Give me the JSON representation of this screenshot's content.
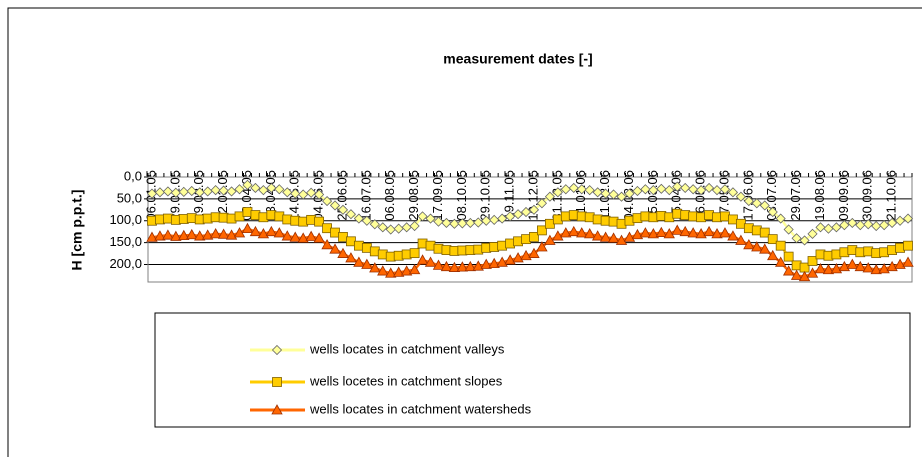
{
  "chart_data": {
    "type": "line",
    "title": "measurement dates [-]",
    "y_label": "H [cm p.p.t.]",
    "categories": [
      "06.01.05",
      null,
      null,
      "29.01.05",
      null,
      null,
      "19.02.05",
      null,
      null,
      "12.03.05",
      null,
      null,
      "02.04.05",
      null,
      null,
      "23.04.05",
      null,
      null,
      "14.05.05",
      null,
      null,
      "04.06.05",
      null,
      null,
      "25.06.05",
      null,
      null,
      "16.07.05",
      null,
      null,
      "06.08.05",
      null,
      null,
      "29.08.05",
      null,
      null,
      "17.09.05",
      null,
      null,
      "08.10.05",
      null,
      null,
      "29.10.05",
      null,
      null,
      "19.11.05",
      null,
      null,
      "10.12.05",
      null,
      null,
      "31.12.05",
      null,
      null,
      "21.01.06",
      null,
      null,
      "11.02.06",
      null,
      null,
      "04.03.06",
      null,
      null,
      "25.03.06",
      null,
      null,
      "15.04.06",
      null,
      null,
      "06.05.06",
      null,
      null,
      "27.05.06",
      null,
      null,
      "17.06.06",
      null,
      null,
      "08.07.06",
      null,
      null,
      "29.07.06",
      null,
      null,
      "19.08.06",
      null,
      null,
      "09.09.06",
      null,
      null,
      "30.09.06",
      null,
      null,
      "21.10.06",
      null,
      null
    ],
    "series": [
      {
        "name": "wells locates in catchment valleys",
        "color": "#ffff99",
        "marker": "diamond",
        "values": [
          38,
          35,
          33,
          36,
          34,
          32,
          35,
          33,
          30,
          31,
          33,
          28,
          18,
          25,
          30,
          25,
          28,
          35,
          38,
          40,
          36,
          40,
          55,
          65,
          75,
          85,
          95,
          100,
          108,
          115,
          120,
          118,
          115,
          112,
          90,
          95,
          102,
          105,
          107,
          106,
          105,
          104,
          100,
          98,
          95,
          90,
          85,
          80,
          75,
          60,
          45,
          35,
          28,
          25,
          28,
          30,
          35,
          38,
          40,
          45,
          38,
          32,
          28,
          30,
          27,
          30,
          22,
          25,
          28,
          30,
          25,
          30,
          28,
          35,
          45,
          55,
          60,
          65,
          80,
          95,
          120,
          140,
          145,
          130,
          115,
          118,
          115,
          110,
          105,
          110,
          108,
          112,
          110,
          105,
          100,
          95
        ]
      },
      {
        "name": "wells locetes in catchment slopes",
        "color": "#ffcc00",
        "marker": "square",
        "values": [
          100,
          97,
          95,
          98,
          96,
          94,
          97,
          95,
          92,
          93,
          95,
          90,
          80,
          87,
          92,
          87,
          90,
          97,
          100,
          102,
          98,
          102,
          117,
          127,
          137,
          147,
          157,
          162,
          170,
          177,
          182,
          180,
          177,
          174,
          152,
          157,
          164,
          167,
          169,
          168,
          167,
          166,
          162,
          160,
          157,
          152,
          147,
          142,
          137,
          122,
          107,
          97,
          90,
          87,
          90,
          92,
          97,
          100,
          102,
          107,
          100,
          94,
          90,
          92,
          89,
          92,
          84,
          87,
          90,
          92,
          87,
          92,
          90,
          97,
          107,
          117,
          122,
          127,
          142,
          157,
          182,
          202,
          207,
          192,
          177,
          180,
          177,
          172,
          167,
          172,
          170,
          174,
          172,
          167,
          162,
          157
        ]
      },
      {
        "name": "wells locates in catchment watersheds",
        "color": "#ff6600",
        "marker": "triangle",
        "values": [
          138,
          135,
          133,
          136,
          134,
          132,
          135,
          133,
          130,
          131,
          133,
          128,
          118,
          125,
          130,
          125,
          128,
          135,
          138,
          140,
          136,
          140,
          155,
          165,
          175,
          185,
          195,
          200,
          208,
          215,
          220,
          218,
          215,
          212,
          190,
          195,
          202,
          205,
          207,
          206,
          205,
          204,
          200,
          198,
          195,
          190,
          185,
          180,
          175,
          160,
          145,
          135,
          128,
          125,
          128,
          130,
          135,
          138,
          140,
          145,
          138,
          132,
          128,
          130,
          127,
          130,
          122,
          125,
          128,
          130,
          125,
          130,
          128,
          135,
          145,
          155,
          160,
          165,
          180,
          195,
          215,
          225,
          228,
          220,
          210,
          212,
          210,
          205,
          200,
          205,
          208,
          212,
          210,
          205,
          200,
          195
        ]
      }
    ],
    "ylim": [
      0,
      240
    ],
    "y_inverted": true,
    "yticks": [
      {
        "value": 0,
        "label": "0,0"
      },
      {
        "value": 50,
        "label": "50,0"
      },
      {
        "value": 100,
        "label": "100,0"
      },
      {
        "value": 150,
        "label": "150,0"
      },
      {
        "value": 200,
        "label": "200,0"
      }
    ],
    "grid": true,
    "legend": "bottom"
  }
}
